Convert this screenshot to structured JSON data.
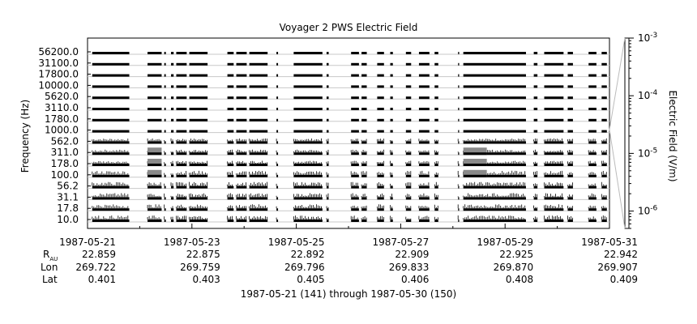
{
  "chart_data": {
    "type": "spectrogram-stripchart",
    "title": "Voyager 2 PWS Electric Field",
    "ylabel": "Frequency (Hz)",
    "colorbar_label": "Electric Field (V/m)",
    "colorbar_scale": "log",
    "colorbar_range": [
      5e-07,
      0.001
    ],
    "colorbar_ticks": [
      {
        "mantissa": "10",
        "exp": "-3",
        "value": 0.001
      },
      {
        "mantissa": "10",
        "exp": "-4",
        "value": 0.0001
      },
      {
        "mantissa": "10",
        "exp": "-5",
        "value": 1e-05
      },
      {
        "mantissa": "10",
        "exp": "-6",
        "value": 1e-06
      }
    ],
    "channels": [
      "56200.0",
      "31100.0",
      "17800.0",
      "10000.0",
      "5620.0",
      "3110.0",
      "1780.0",
      "1000.0",
      "562.0",
      "311.0",
      "178.0",
      "100.0",
      "56.2",
      "31.1",
      "17.8",
      "10.0"
    ],
    "x_range_days": [
      0,
      10
    ],
    "x_ticks": [
      {
        "day": 0,
        "date": "1987-05-21",
        "rau": "22.859",
        "lon": "269.722",
        "lat": "0.401"
      },
      {
        "day": 2,
        "date": "1987-05-23",
        "rau": "22.875",
        "lon": "269.759",
        "lat": "0.403"
      },
      {
        "day": 4,
        "date": "1987-05-25",
        "rau": "22.892",
        "lon": "269.796",
        "lat": "0.405"
      },
      {
        "day": 6,
        "date": "1987-05-27",
        "rau": "22.909",
        "lon": "269.833",
        "lat": "0.406"
      },
      {
        "day": 8,
        "date": "1987-05-29",
        "rau": "22.925",
        "lon": "269.870",
        "lat": "0.408"
      },
      {
        "day": 10,
        "date": "1987-05-31",
        "rau": "22.942",
        "lon": "269.907",
        "lat": "0.409"
      }
    ],
    "ephemeris_labels": {
      "rau_main": "R",
      "rau_sub": "AU",
      "lon": "Lon",
      "lat": "Lat"
    },
    "footer": "1987-05-21 (141) through 1987-05-30 (150)",
    "data_segments_days": [
      [
        0.09,
        0.8
      ],
      [
        1.15,
        1.42
      ],
      [
        1.47,
        1.5
      ],
      [
        1.6,
        1.65
      ],
      [
        1.7,
        1.9
      ],
      [
        1.95,
        2.3
      ],
      [
        2.68,
        2.8
      ],
      [
        2.85,
        3.05
      ],
      [
        3.1,
        3.45
      ],
      [
        3.62,
        3.65
      ],
      [
        3.95,
        4.5
      ],
      [
        4.58,
        4.62
      ],
      [
        5.05,
        5.2
      ],
      [
        5.25,
        5.35
      ],
      [
        5.55,
        5.68
      ],
      [
        5.8,
        5.85
      ],
      [
        6.1,
        6.2
      ],
      [
        6.35,
        6.55
      ],
      [
        6.65,
        6.72
      ],
      [
        7.1,
        7.12
      ],
      [
        7.2,
        8.4
      ],
      [
        8.55,
        8.62
      ],
      [
        8.75,
        9.12
      ],
      [
        9.2,
        9.3
      ],
      [
        9.6,
        9.75
      ],
      [
        9.85,
        9.95
      ]
    ],
    "enhanced_emission": [
      {
        "days": [
          1.15,
          1.42
        ],
        "channels": [
          "311.0",
          "178.0",
          "100.0"
        ]
      },
      {
        "days": [
          7.2,
          7.65
        ],
        "channels": [
          "311.0",
          "178.0",
          "100.0"
        ]
      }
    ]
  }
}
